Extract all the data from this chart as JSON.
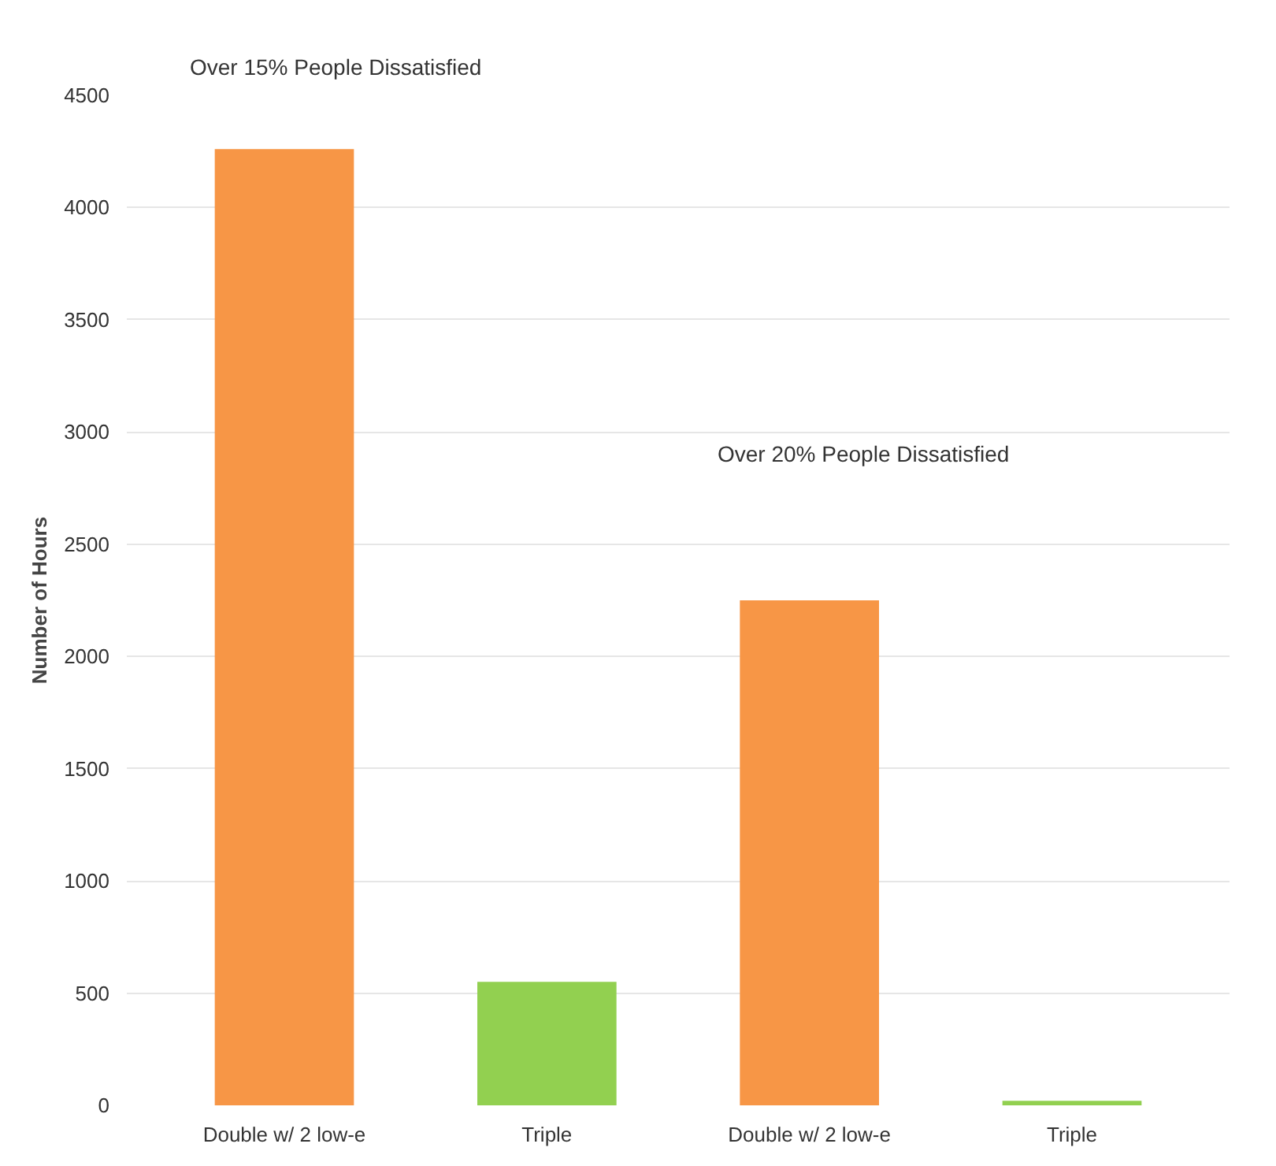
{
  "chart_data": {
    "type": "bar",
    "ylabel": "Number of Hours",
    "categories": [
      "Double w/ 2 low-e",
      "Triple",
      "Double w/ 2 low-e",
      "Triple"
    ],
    "values": [
      4260,
      550,
      2250,
      20
    ],
    "colors": [
      "#f79646",
      "#92d050",
      "#f79646",
      "#92d050"
    ],
    "ylim": [
      0,
      4500
    ],
    "yticks": [
      0,
      500,
      1000,
      1500,
      2000,
      2500,
      3000,
      3500,
      4000,
      4500
    ],
    "grid": "y",
    "annotations": [
      "Over 15% People Dissatisfied",
      "Over 20% People Dissatisfied"
    ]
  }
}
